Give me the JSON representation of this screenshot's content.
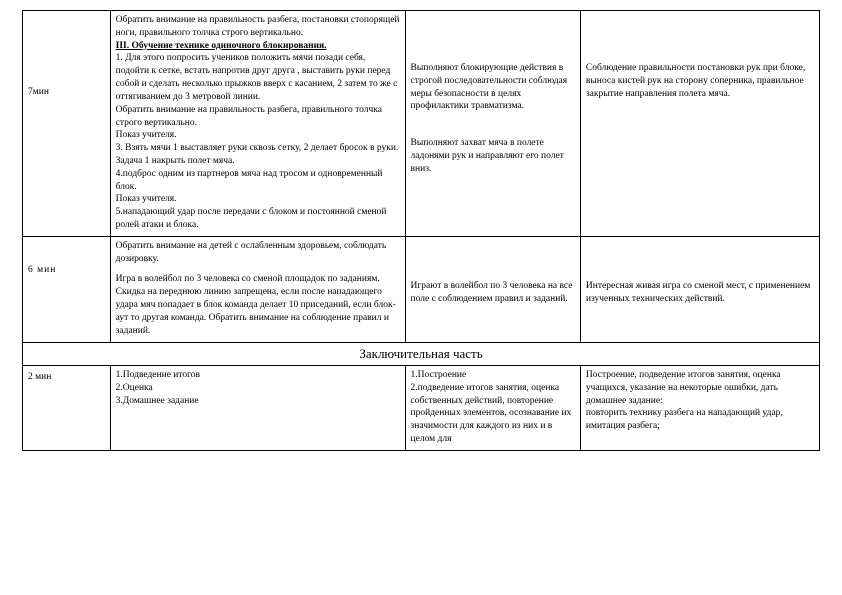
{
  "rows": [
    {
      "time": "7мин",
      "method_intro": "Обратить внимание на правильность разбега, постановки стопорящей ноги, правильного толчка строго вертикально.",
      "method_heading": "III. Обучение  технике одиночного  блокирования.",
      "method_items": [
        "1. Для этого попросить учеников положить мячи позади себя, подойти к сетке, встать напротив друг друга , выставить руки перед собой и сделать несколько прыжков вверх с касанием, 2 затем то же с оттягиванием до 3 метровой линии.",
        "  Обратить внимание на правильность разбега, правильного толчка строго вертикально.",
        "  Показ учителя.",
        "3. Взять мячи 1 выставляет руки сквозь сетку, 2 делает бросок в руки. Задача 1 накрыть полет мяча.",
        "4.подброс одним из партнеров мяча над тросом и одновременный блок.",
        "Показ учителя.",
        "5.нападающий удар после передачи с блоком и постоянной сменой ролей атаки и блока."
      ],
      "activity1": "Выполняют блокирующие действия в строгой последовательности соблюдая меры безопасности в целях профилактики травматизма.",
      "activity2": "Выполняют захват мяча в полете ладонями рук и направляют его полет вниз.",
      "notes": "Соблюдение правильности постановки рук при блоке, выноса кистей рук на сторону соперника, правильное закрытие направления полета мяча."
    },
    {
      "time": "6 мин",
      "method1": "Обратить внимание на детей с ослабленным здоровьем, соблюдать дозировку.",
      "method2": "Игра в волейбол по 3 человека со сменой площадок по заданиям. Скидка на переднюю линию запрещена, если после нападающего удара мяч попадает в блок команда делает 10 приседаний, если блок-аут  то другая команда. Обратить внимание на соблюдение правил и заданий.",
      "activity": "Играют в волейбол по 3 человека на все поле с соблюдением правил и заданий.",
      "notes": "Интересная  живая игра со сменой мест,  с применением изученных технических действий."
    }
  ],
  "section_title": "Заключительная часть",
  "final": {
    "time": "2 мин",
    "method": [
      "1.Подведение итогов",
      "2.Оценка",
      "3.Домашнее задание"
    ],
    "activity": "1.Построение\n2.подведение итогов занятия, оценка собственных действий, повторение пройденных элементов, осознавание их значимости для каждого из них и в целом для",
    "notes": "Построение, подведение итогов занятия, оценка учащихся, указание на некоторые ошибки, дать домашнее задание:\nповторить технику разбега на нападающий удар, имитация разбега;"
  },
  "colors": {
    "border": "#000000",
    "text": "#000000",
    "background": "#ffffff"
  }
}
